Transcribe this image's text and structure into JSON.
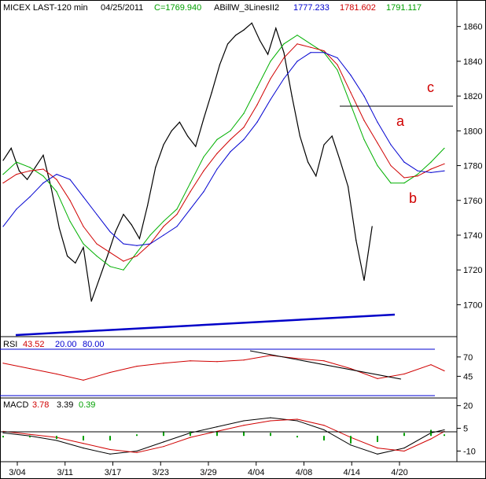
{
  "header": {
    "symbol": "MICEX LAST-120 min",
    "date": "04/25/2011",
    "close_label": "C=1769.940",
    "indicator_name": "ABillW_3LinesII2",
    "indicator_values": [
      "1777.233",
      "1781.602",
      "1791.117"
    ]
  },
  "rsi_header": {
    "name": "RSI",
    "values": [
      "43.52",
      "20.00",
      "80.00"
    ]
  },
  "macd_header": {
    "name": "MACD",
    "values": [
      "3.78",
      "3.39",
      "0.39"
    ]
  },
  "annotations": [
    "a",
    "b",
    "c"
  ],
  "colors": {
    "background": "#ffffff",
    "price": "#000000",
    "fast_line": "#00b000",
    "mid_line": "#d00000",
    "slow_line": "#0000d0",
    "trendline": "#0000c8",
    "rsi_line": "#d00000",
    "macd_line": "#000000",
    "macd_signal": "#d00000",
    "macd_hist": "#00a000",
    "annotation": "#d00000"
  },
  "chart_data": [
    {
      "type": "line",
      "panel": "price",
      "ylim": [
        1683,
        1868
      ],
      "yticks": [
        1700,
        1720,
        1740,
        1760,
        1780,
        1800,
        1820,
        1840,
        1860
      ],
      "xticklabels": [
        "3/04",
        "3/11",
        "3/17",
        "3/23",
        "3/29",
        "4/04",
        "4/08",
        "4/14",
        "4/20"
      ],
      "series": [
        {
          "name": "close",
          "x": [
            0,
            6,
            12,
            18,
            24,
            30,
            36,
            42,
            48,
            54,
            60,
            66,
            72,
            78,
            84,
            90,
            96,
            102,
            108,
            114,
            120,
            126,
            132,
            138,
            144,
            150,
            156,
            162,
            168,
            174,
            180,
            186,
            192,
            198,
            204,
            210,
            216,
            222,
            228,
            234,
            240,
            246,
            252,
            258,
            264,
            270,
            276
          ],
          "values": [
            1783,
            1790,
            1777,
            1772,
            1779,
            1786,
            1767,
            1744,
            1728,
            1724,
            1733,
            1702,
            1715,
            1728,
            1742,
            1752,
            1746,
            1738,
            1757,
            1779,
            1792,
            1800,
            1805,
            1797,
            1791,
            1807,
            1822,
            1838,
            1850,
            1855,
            1858,
            1862,
            1852,
            1844,
            1859,
            1845,
            1820,
            1797,
            1782,
            1774,
            1792,
            1797,
            1783,
            1768,
            1737,
            1714,
            1745
          ]
        },
        {
          "name": "fast",
          "x": [
            0,
            10,
            20,
            30,
            40,
            50,
            60,
            70,
            80,
            90,
            100,
            110,
            120,
            130,
            140,
            150,
            160,
            170,
            180,
            190,
            200,
            210,
            220,
            230,
            240,
            250,
            260,
            270,
            280,
            290,
            300,
            310,
            320,
            330
          ],
          "values": [
            1775,
            1782,
            1779,
            1774,
            1765,
            1748,
            1735,
            1728,
            1722,
            1720,
            1730,
            1740,
            1748,
            1755,
            1770,
            1785,
            1795,
            1800,
            1810,
            1825,
            1840,
            1850,
            1855,
            1850,
            1845,
            1835,
            1815,
            1795,
            1780,
            1770,
            1770,
            1775,
            1782,
            1790
          ]
        },
        {
          "name": "mid",
          "x": [
            0,
            10,
            20,
            30,
            40,
            50,
            60,
            70,
            80,
            90,
            100,
            110,
            120,
            130,
            140,
            150,
            160,
            170,
            180,
            190,
            200,
            210,
            220,
            230,
            240,
            250,
            260,
            270,
            280,
            290,
            300,
            310,
            320,
            330
          ],
          "values": [
            1770,
            1775,
            1777,
            1778,
            1772,
            1760,
            1745,
            1735,
            1730,
            1725,
            1728,
            1735,
            1745,
            1752,
            1765,
            1777,
            1787,
            1795,
            1802,
            1815,
            1830,
            1842,
            1850,
            1848,
            1846,
            1838,
            1822,
            1806,
            1793,
            1780,
            1773,
            1774,
            1778,
            1781
          ]
        },
        {
          "name": "slow",
          "x": [
            0,
            10,
            20,
            30,
            40,
            50,
            60,
            70,
            80,
            90,
            100,
            110,
            120,
            130,
            140,
            150,
            160,
            170,
            180,
            190,
            200,
            210,
            220,
            230,
            240,
            250,
            260,
            270,
            280,
            290,
            300,
            310,
            320,
            330
          ],
          "values": [
            1745,
            1755,
            1762,
            1770,
            1775,
            1772,
            1762,
            1752,
            1742,
            1735,
            1734,
            1735,
            1740,
            1745,
            1755,
            1765,
            1778,
            1788,
            1795,
            1805,
            1818,
            1830,
            1840,
            1845,
            1845,
            1842,
            1832,
            1820,
            1805,
            1792,
            1782,
            1777,
            1776,
            1777
          ]
        }
      ]
    },
    {
      "type": "line",
      "panel": "rsi",
      "ylim": [
        20,
        80
      ],
      "yticks": [
        45,
        70
      ],
      "series": [
        {
          "name": "rsi",
          "x": [
            0,
            20,
            40,
            60,
            80,
            100,
            120,
            140,
            160,
            180,
            200,
            220,
            240,
            260,
            280,
            300,
            320,
            330
          ],
          "values": [
            62,
            55,
            48,
            40,
            50,
            58,
            62,
            65,
            64,
            66,
            72,
            68,
            65,
            55,
            42,
            48,
            60,
            52
          ]
        }
      ]
    },
    {
      "type": "line",
      "panel": "macd",
      "ylim": [
        -16,
        24
      ],
      "yticks": [
        -10,
        5,
        20
      ],
      "series": [
        {
          "name": "macd",
          "x": [
            0,
            20,
            40,
            60,
            80,
            100,
            120,
            140,
            160,
            180,
            200,
            220,
            240,
            260,
            280,
            300,
            320,
            330
          ],
          "values": [
            2,
            0,
            -3,
            -8,
            -12,
            -10,
            -4,
            2,
            6,
            10,
            12,
            10,
            4,
            -6,
            -12,
            -8,
            2,
            4
          ]
        },
        {
          "name": "signal",
          "x": [
            0,
            20,
            40,
            60,
            80,
            100,
            120,
            140,
            160,
            180,
            200,
            220,
            240,
            260,
            280,
            300,
            320,
            330
          ],
          "values": [
            3,
            1,
            -1,
            -5,
            -9,
            -11,
            -7,
            -1,
            3,
            7,
            10,
            11,
            7,
            -1,
            -8,
            -10,
            -2,
            3
          ]
        }
      ]
    }
  ]
}
